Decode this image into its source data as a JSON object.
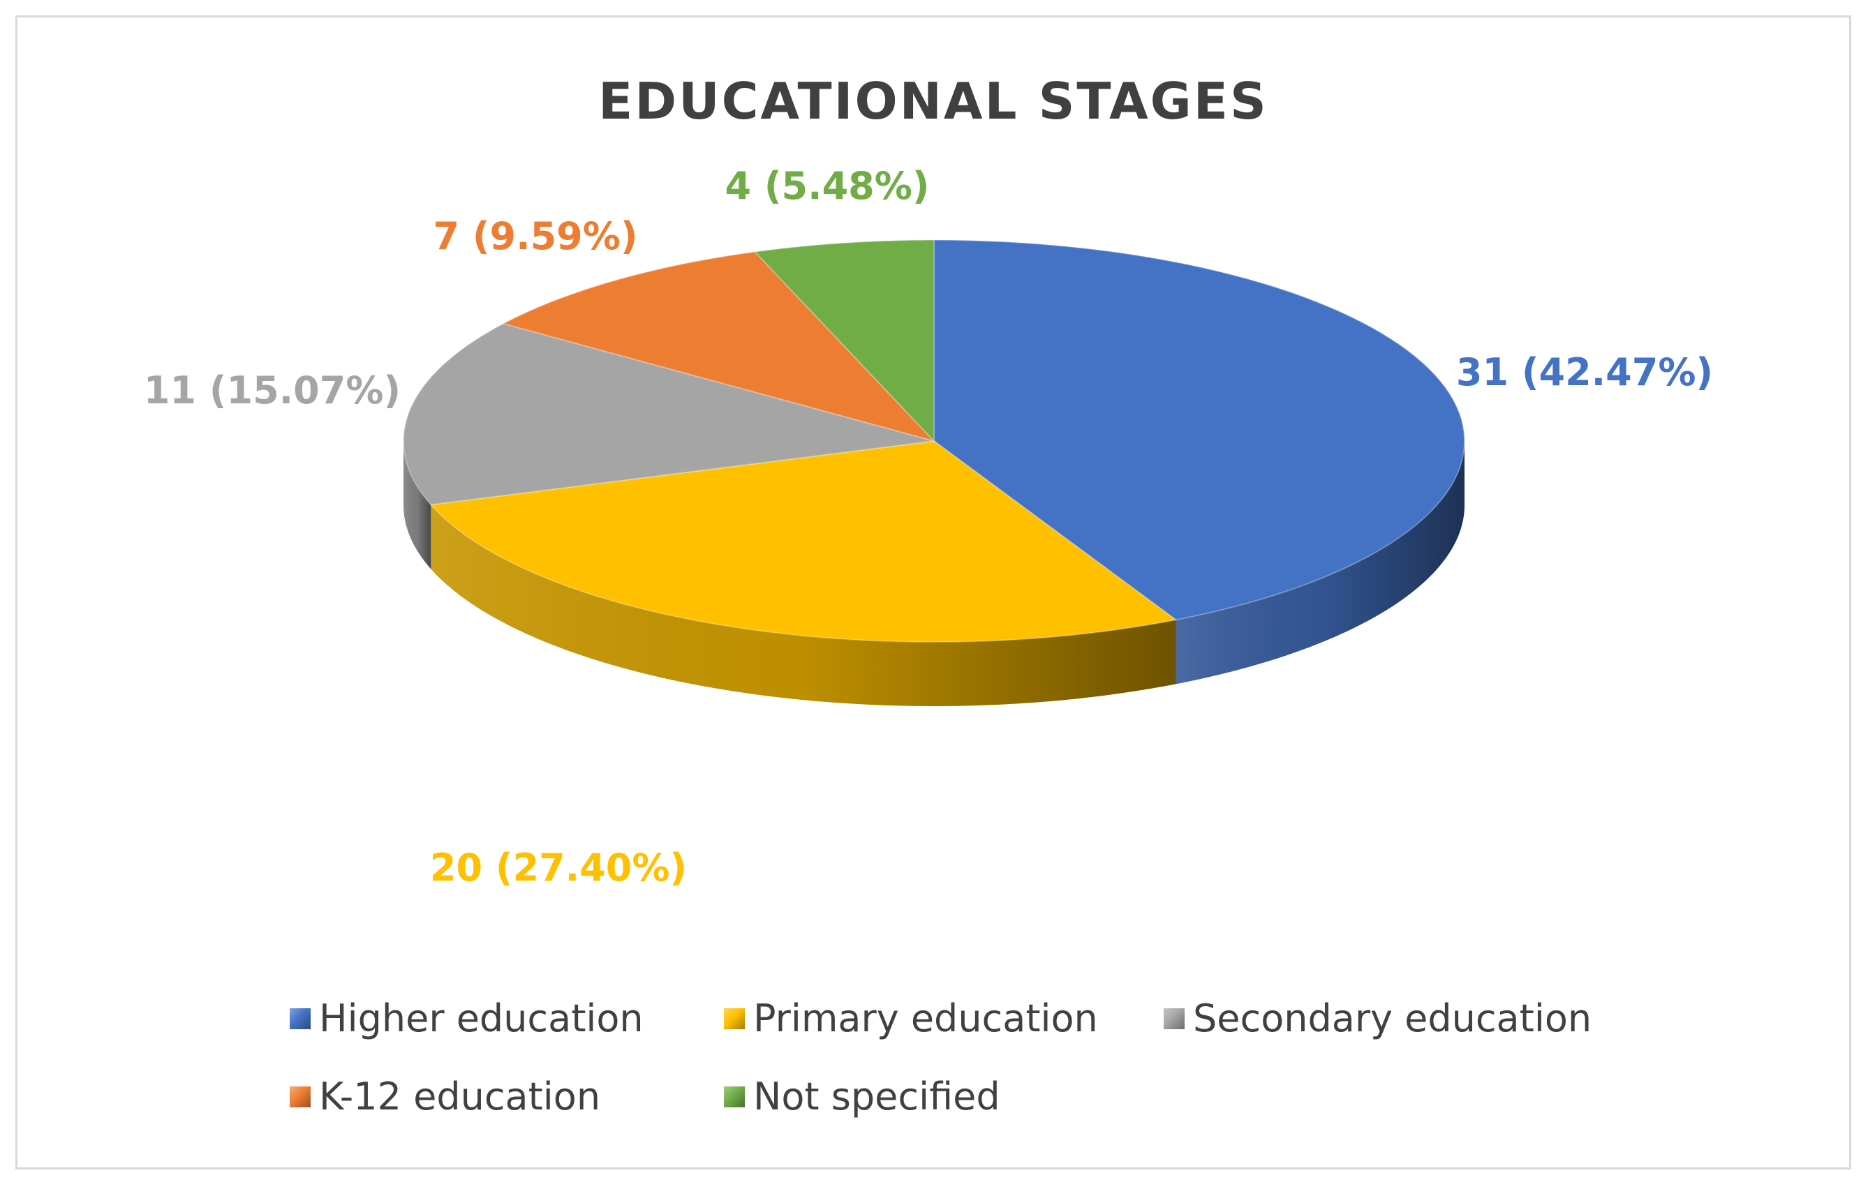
{
  "chart_data": {
    "type": "pie",
    "title": "EDUCATIONAL STAGES",
    "categories": [
      "Higher education",
      "Primary education",
      "Secondary education",
      "K-12 education",
      "Not specified"
    ],
    "values": [
      31,
      20,
      11,
      7,
      4
    ],
    "data_labels": [
      "31 (42.47%)",
      "20 (27.40%)",
      "11 (15.07%)",
      "7 (9.59%)",
      "4 (5.48%)"
    ],
    "colors": [
      "#4472C4",
      "#FFC000",
      "#A5A5A5",
      "#ED7D31",
      "#70AD47"
    ],
    "label_colors": [
      "#4472C4",
      "#FFC000",
      "#A5A5A5",
      "#ED7D31",
      "#70AD47"
    ],
    "style": "3d",
    "legend_position": "bottom"
  }
}
